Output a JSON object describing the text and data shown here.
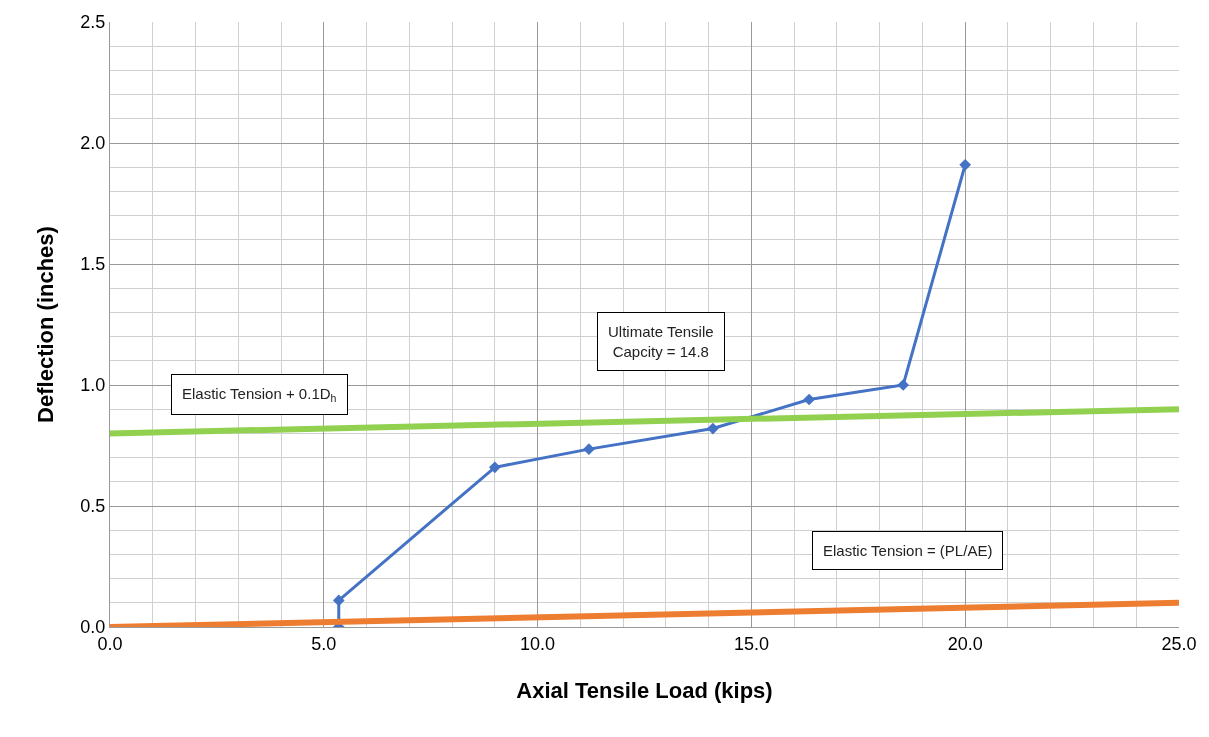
{
  "chart_data": {
    "type": "line",
    "xlabel": "Axial Tensile Load (kips)",
    "ylabel": "Deflection (inches)",
    "xlim": [
      0,
      25
    ],
    "xticks": [
      {
        "value": 0,
        "label": "0.0"
      },
      {
        "value": 5,
        "label": "5.0"
      },
      {
        "value": 10,
        "label": "10.0"
      },
      {
        "value": 15,
        "label": "15.0"
      },
      {
        "value": 20,
        "label": "20.0"
      },
      {
        "value": 25,
        "label": "25.0"
      }
    ],
    "ylim": [
      0,
      2.5
    ],
    "yticks": [
      {
        "value": 0,
        "label": "0.0"
      },
      {
        "value": 0.5,
        "label": "0.5"
      },
      {
        "value": 1,
        "label": "1.0"
      },
      {
        "value": 1.5,
        "label": "1.5"
      },
      {
        "value": 2,
        "label": "2.0"
      },
      {
        "value": 2.5,
        "label": "2.5"
      }
    ],
    "grid": true,
    "series": [
      {
        "color": "#4472c4",
        "marker": "diamond",
        "x": [
          5.35,
          5.35,
          9.0,
          11.2,
          14.1,
          16.35,
          18.55,
          20.0
        ],
        "values": [
          0.0,
          0.11,
          0.66,
          0.735,
          0.82,
          0.94,
          1.0,
          1.91
        ]
      },
      {
        "color": "#92d050",
        "marker": "none",
        "x": [
          0,
          25
        ],
        "values": [
          0.8,
          0.9
        ]
      },
      {
        "color": "#ed7d31",
        "marker": "none",
        "x": [
          0,
          25
        ],
        "values": [
          0.0,
          0.1
        ]
      }
    ],
    "annotations": [
      "Ultimate Tensile\nCapcity = 14.8",
      "Elastic Tension + 0.1D$_{h}$",
      "Elastic Tension = (PL/AE)"
    ]
  }
}
